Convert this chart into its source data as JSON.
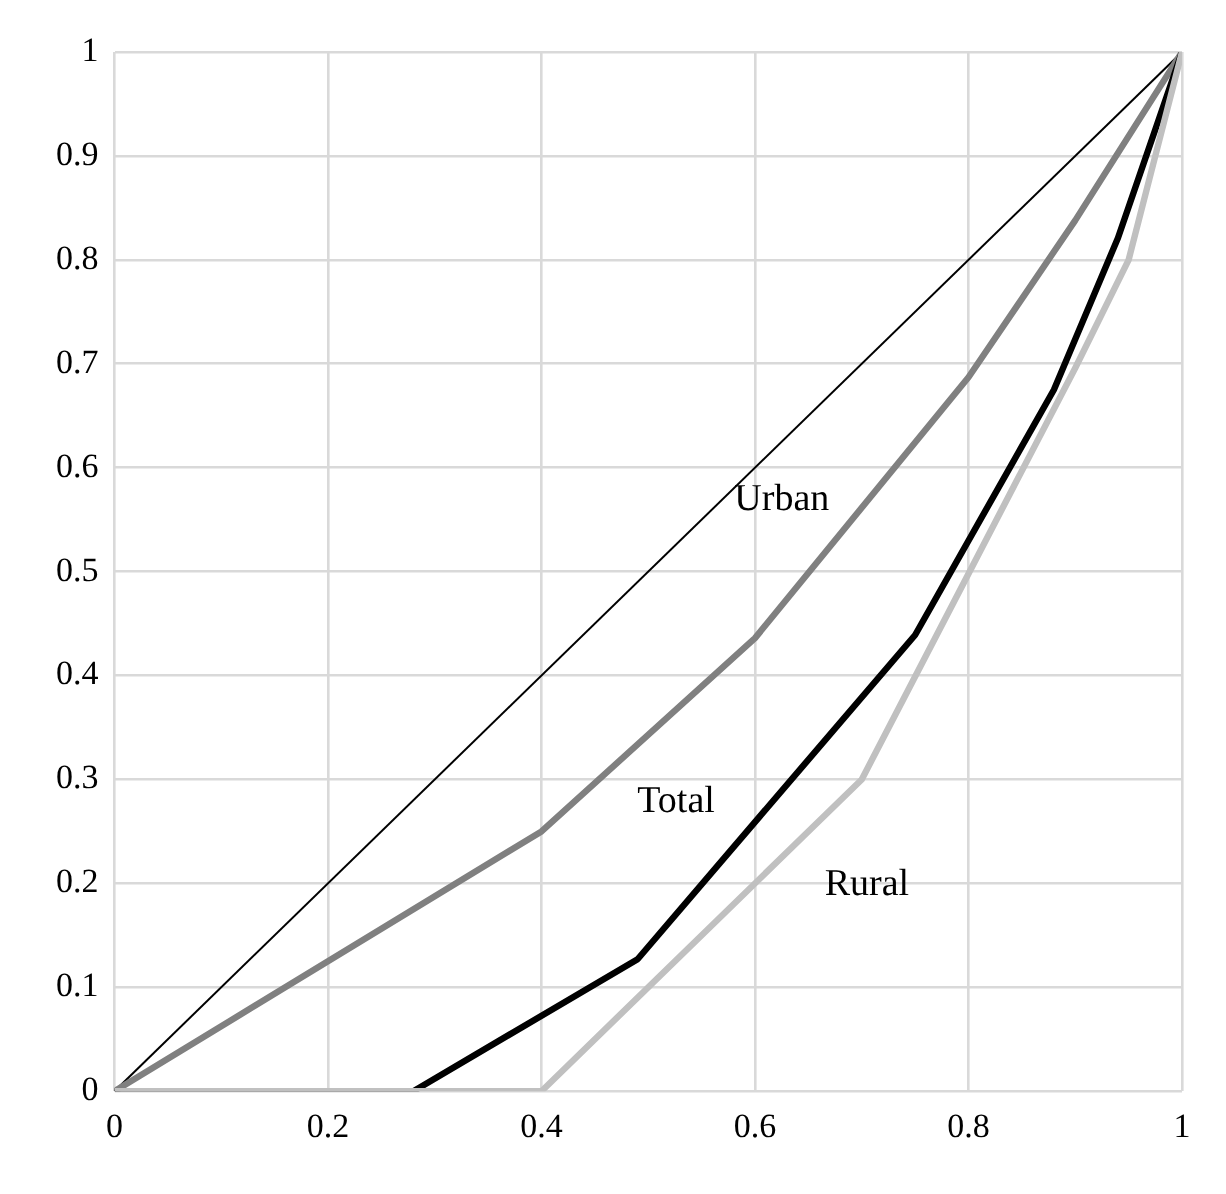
{
  "chart_data": {
    "type": "line",
    "xlim": [
      0,
      1
    ],
    "xticks": [
      0,
      0.2,
      0.4,
      0.6,
      0.8,
      1
    ],
    "ylim": [
      0,
      1
    ],
    "yticks": [
      0,
      0.1,
      0.2,
      0.3,
      0.4,
      0.5,
      0.6,
      0.7,
      0.8,
      0.9,
      1
    ],
    "grid": true,
    "legend": false,
    "marker": "none",
    "line_style": "solid",
    "series": [
      {
        "color": "#000000",
        "x": [
          0,
          1
        ],
        "values": [
          0,
          1
        ]
      },
      {
        "name": "Urban",
        "color": "#808080",
        "x": [
          0,
          0.4,
          0.6,
          0.8,
          0.9,
          1
        ],
        "values": [
          0,
          0.25,
          0.436,
          0.687,
          0.838,
          1
        ]
      },
      {
        "name": "Total",
        "color": "#000000",
        "x": [
          0,
          0.28,
          0.49,
          0.75,
          0.88,
          0.94,
          1
        ],
        "values": [
          0,
          0,
          0.127,
          0.439,
          0.675,
          0.821,
          1
        ]
      },
      {
        "name": "Rural",
        "color": "#c0c0c0",
        "x": [
          0,
          0.4,
          0.7,
          0.8,
          0.9,
          0.95,
          1
        ],
        "values": [
          0,
          0,
          0.3,
          0.498,
          0.696,
          0.8,
          1
        ]
      }
    ]
  }
}
